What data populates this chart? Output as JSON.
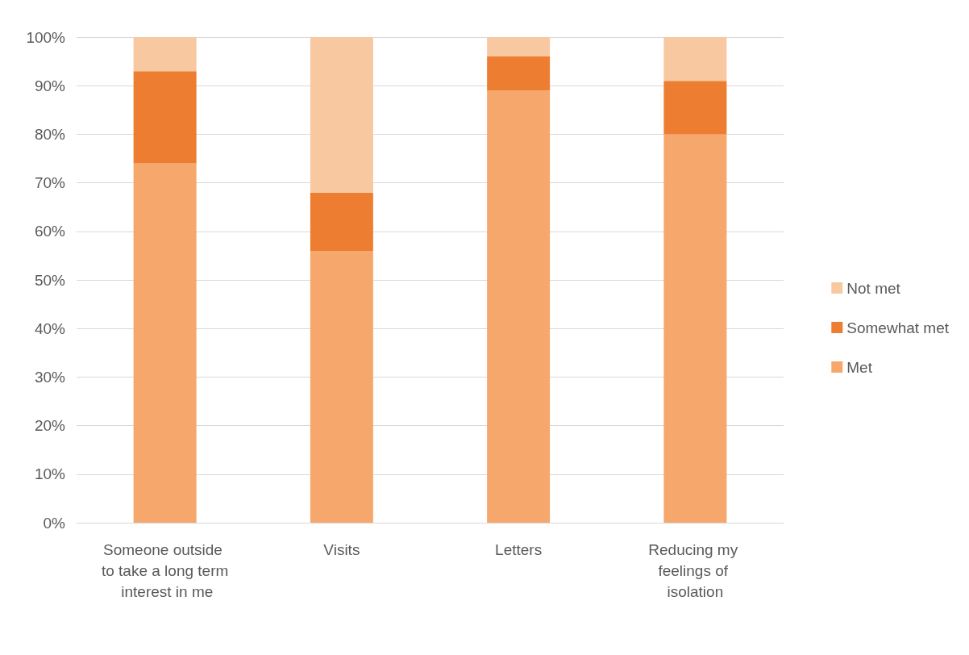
{
  "chart_data": {
    "type": "bar",
    "stacked": true,
    "categories": [
      "Someone outside to take a long term interest in me",
      "Visits",
      "Letters",
      "Reducing my feelings of isolation"
    ],
    "series": [
      {
        "name": "Met",
        "color": "#f5a76c",
        "values": [
          74,
          56,
          89,
          80
        ]
      },
      {
        "name": "Somewhat met",
        "color": "#ed7d31",
        "values": [
          19,
          12,
          7,
          11
        ]
      },
      {
        "name": "Not met",
        "color": "#f8c8a0",
        "values": [
          7,
          32,
          4,
          9
        ]
      }
    ],
    "ylim": [
      0,
      100
    ],
    "yticks": [
      {
        "value": 0,
        "label": "0%"
      },
      {
        "value": 10,
        "label": "10%"
      },
      {
        "value": 20,
        "label": "20%"
      },
      {
        "value": 30,
        "label": "30%"
      },
      {
        "value": 40,
        "label": "40%"
      },
      {
        "value": 50,
        "label": "50%"
      },
      {
        "value": 60,
        "label": "60%"
      },
      {
        "value": 70,
        "label": "70%"
      },
      {
        "value": 80,
        "label": "80%"
      },
      {
        "value": 90,
        "label": "90%"
      },
      {
        "value": 100,
        "label": "100%"
      }
    ],
    "grid": "y",
    "legend": "right"
  }
}
